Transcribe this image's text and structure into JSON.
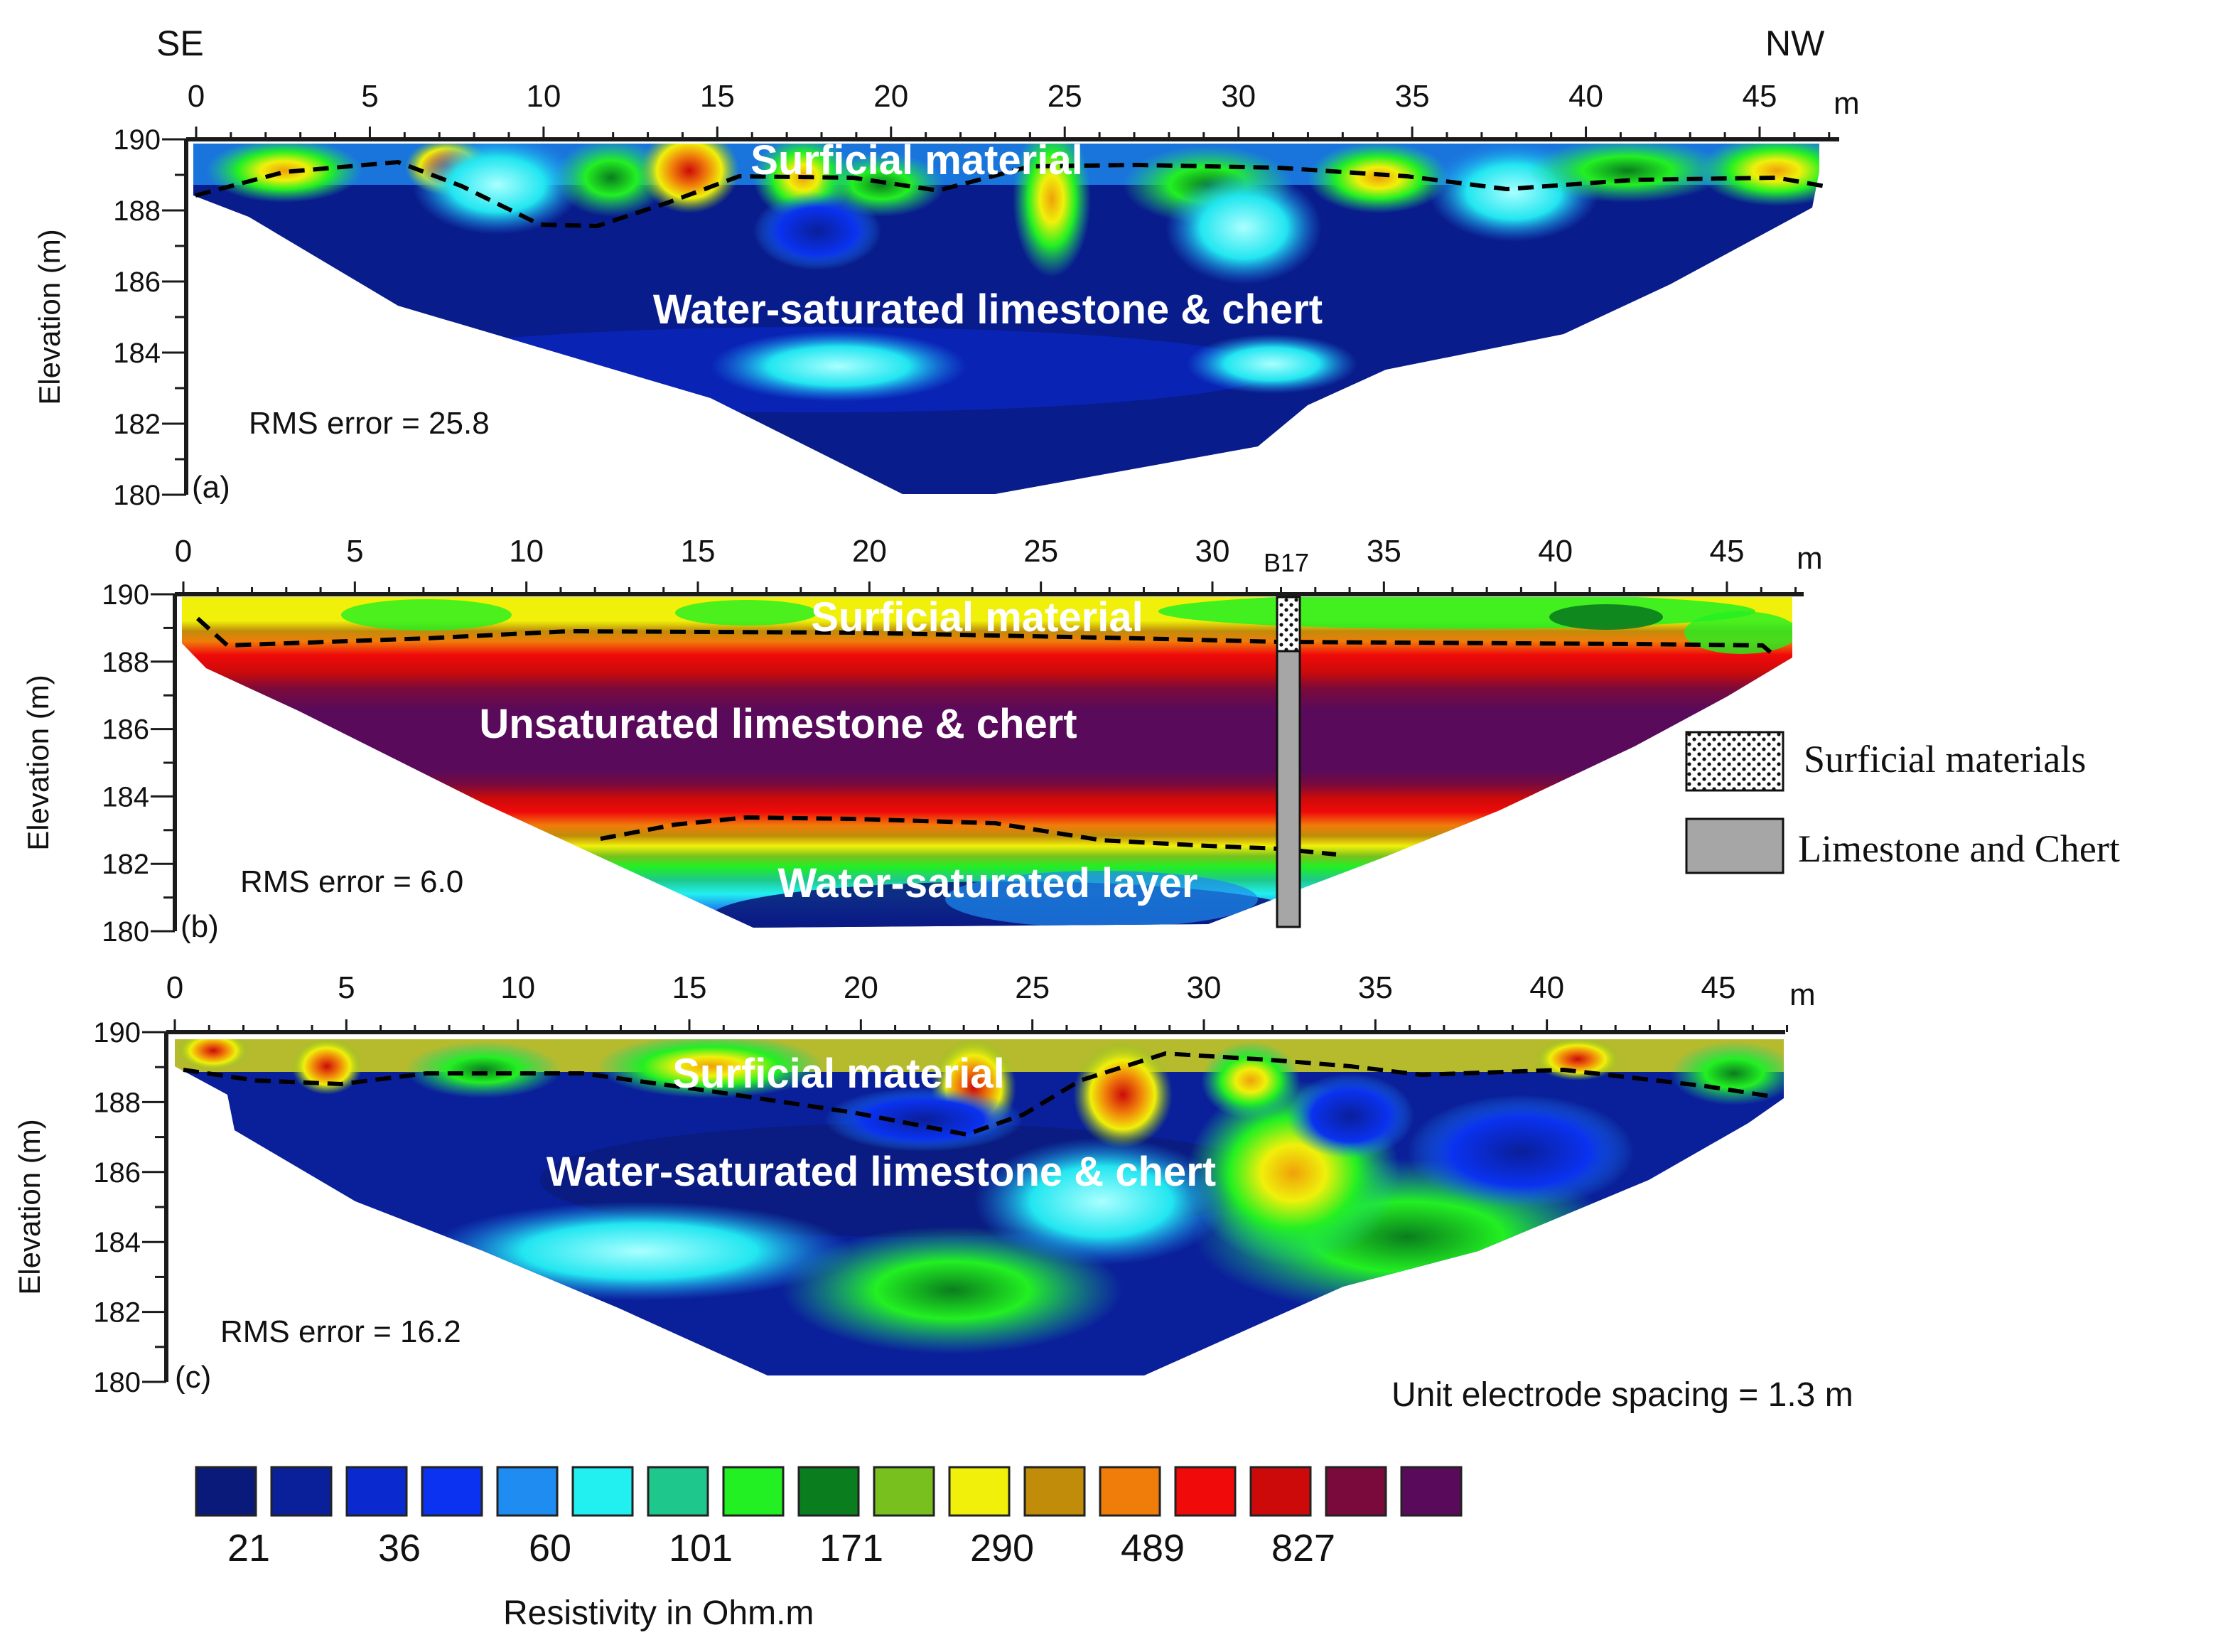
{
  "header": {
    "left_direction": "SE",
    "right_direction": "NW"
  },
  "axes": {
    "x_unit": "m",
    "x_ticks": [
      0,
      5,
      10,
      15,
      20,
      25,
      30,
      35,
      40,
      45
    ],
    "y_label": "Elevation (m)",
    "y_ticks": [
      190,
      188,
      186,
      184,
      182,
      180
    ]
  },
  "panels": [
    {
      "id": "a",
      "panel_label": "(a)",
      "rms_label": "RMS error = 25.8",
      "top_label": "Surficial material",
      "main_label": "Water-saturated limestone & chert"
    },
    {
      "id": "b",
      "panel_label": "(b)",
      "rms_label": "RMS error = 6.0",
      "top_label": "Surficial material",
      "main_label": "Unsaturated limestone & chert",
      "bottom_label": "Water-saturated layer",
      "borehole_label": "B17"
    },
    {
      "id": "c",
      "panel_label": "(c)",
      "rms_label": "RMS error = 16.2",
      "top_label": "Surficial material",
      "main_label": "Water-saturated limestone & chert"
    }
  ],
  "borehole_legend": [
    {
      "label": "Surficial materials",
      "pattern": "dotted"
    },
    {
      "label": "Limestone and Chert",
      "color": "#a6a6a6"
    }
  ],
  "electrode_note": "Unit electrode spacing = 1.3 m",
  "color_scale": {
    "title": "Resistivity in Ohm.m",
    "colors": [
      "#0a1a7a",
      "#0a1f9a",
      "#0a2ad0",
      "#0a32f0",
      "#1e8cf0",
      "#22f0f0",
      "#1ec88c",
      "#22f022",
      "#0a7d1e",
      "#78c01e",
      "#f0f00a",
      "#c08c0a",
      "#f07d0a",
      "#f00a0a",
      "#cc0a0a",
      "#7a0a3c",
      "#5a0a5a"
    ],
    "labels": [
      "21",
      "36",
      "60",
      "101",
      "171",
      "290",
      "489",
      "827"
    ]
  }
}
